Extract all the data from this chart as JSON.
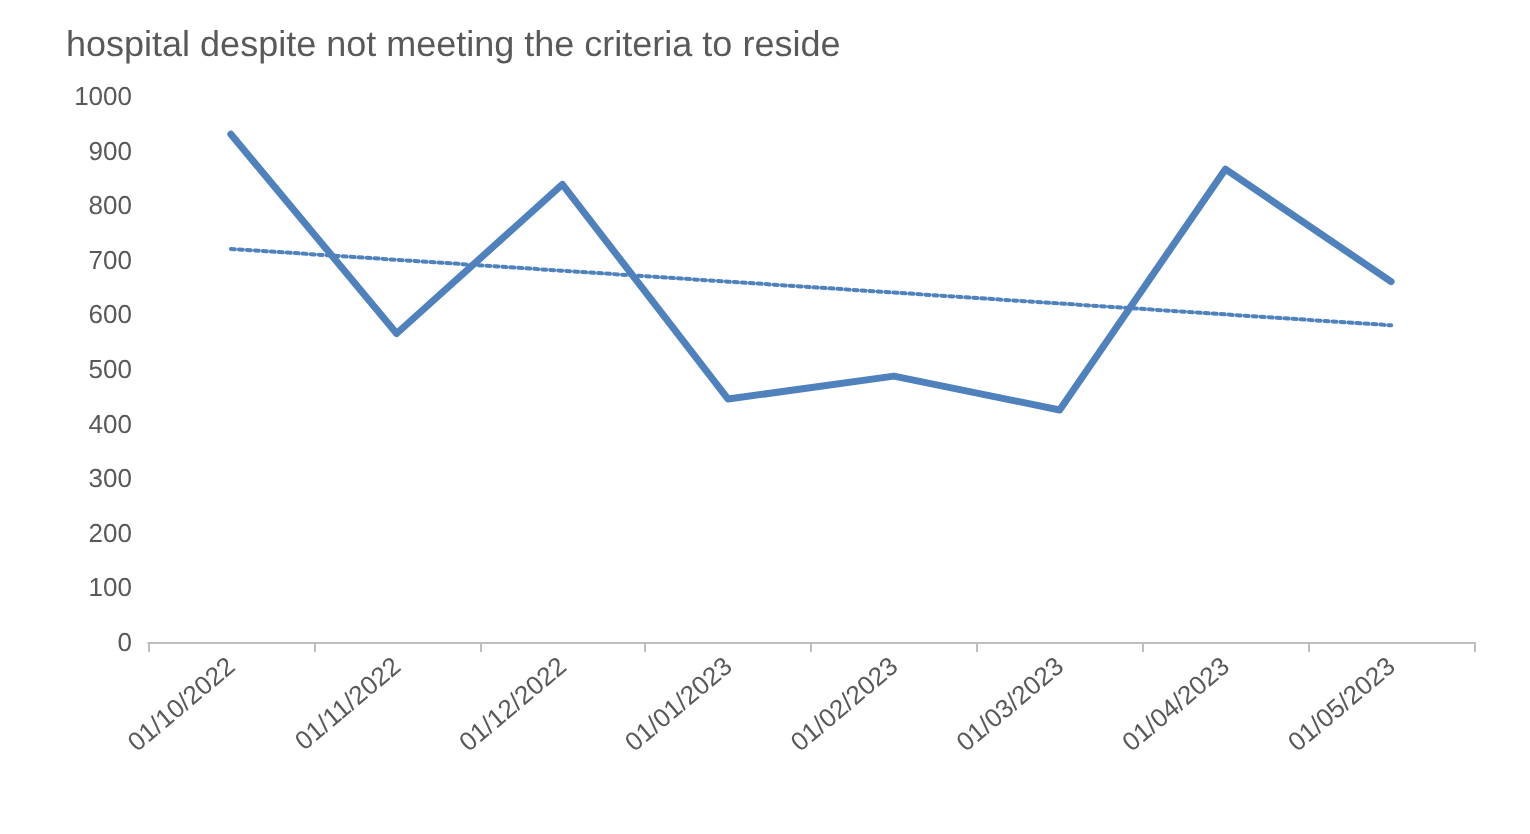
{
  "chart_data": {
    "type": "line",
    "title": "hospital despite not meeting the criteria to reside",
    "categories": [
      "01/10/2022",
      "01/11/2022",
      "01/12/2022",
      "01/01/2023",
      "01/02/2023",
      "01/03/2023",
      "01/04/2023",
      "01/05/2023"
    ],
    "series": [
      {
        "color": "#4f81bd",
        "values": [
          930,
          565,
          838,
          445,
          487,
          425,
          866,
          660
        ],
        "line_style": "solid"
      },
      {
        "type": "line",
        "color": "#4f81bd",
        "values": [
          720,
          700,
          680,
          660,
          640,
          620,
          600,
          580
        ],
        "line_style": "dotted"
      }
    ],
    "ylim": [
      0,
      1000
    ],
    "yticks": [
      0,
      100,
      200,
      300,
      400,
      500,
      600,
      700,
      800,
      900,
      1000
    ],
    "grid": false,
    "marker": "none"
  }
}
